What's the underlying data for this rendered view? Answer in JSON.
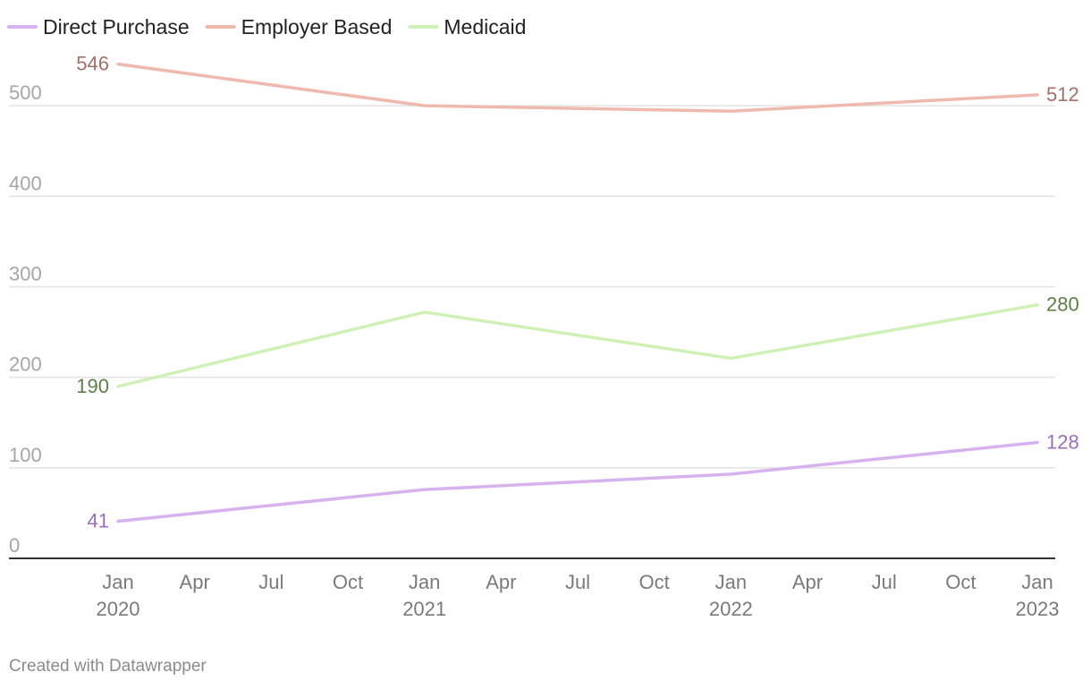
{
  "chart_data": {
    "type": "line",
    "x": [
      "2020-01",
      "2021-01",
      "2022-01",
      "2023-01"
    ],
    "series": [
      {
        "name": "Direct Purchase",
        "color": "#d7b2ef",
        "label_color": "#9a6fb4",
        "values": [
          41,
          76,
          93,
          128
        ],
        "start_label": "41",
        "end_label": "128"
      },
      {
        "name": "Employer Based",
        "color": "#efb9ae",
        "label_color": "#a5706a",
        "values": [
          546,
          500,
          494,
          512
        ],
        "start_label": "546",
        "end_label": "512"
      },
      {
        "name": "Medicaid",
        "color": "#cff1b5",
        "label_color": "#5b7f47",
        "values": [
          190,
          272,
          221,
          280
        ],
        "start_label": "190",
        "end_label": "280"
      }
    ],
    "ylim": [
      0,
      600
    ],
    "y_ticks": [
      {
        "value": 0,
        "label": "0"
      },
      {
        "value": 100,
        "label": "100"
      },
      {
        "value": 200,
        "label": "200"
      },
      {
        "value": 300,
        "label": "300"
      },
      {
        "value": 400,
        "label": "400"
      },
      {
        "value": 500,
        "label": "500"
      }
    ],
    "x_ticks": [
      {
        "month": 0,
        "label": "Jan",
        "year": "2020"
      },
      {
        "month": 3,
        "label": "Apr",
        "year": ""
      },
      {
        "month": 6,
        "label": "Jul",
        "year": ""
      },
      {
        "month": 9,
        "label": "Oct",
        "year": ""
      },
      {
        "month": 12,
        "label": "Jan",
        "year": "2021"
      },
      {
        "month": 15,
        "label": "Apr",
        "year": ""
      },
      {
        "month": 18,
        "label": "Jul",
        "year": ""
      },
      {
        "month": 21,
        "label": "Oct",
        "year": ""
      },
      {
        "month": 24,
        "label": "Jan",
        "year": "2022"
      },
      {
        "month": 27,
        "label": "Apr",
        "year": ""
      },
      {
        "month": 30,
        "label": "Jul",
        "year": ""
      },
      {
        "month": 33,
        "label": "Oct",
        "year": ""
      },
      {
        "month": 36,
        "label": "Jan",
        "year": "2023"
      }
    ],
    "legend": "top-left",
    "grid": true,
    "title": "",
    "xlabel": "",
    "ylabel": ""
  },
  "footer": {
    "credit": "Created with Datawrapper"
  }
}
